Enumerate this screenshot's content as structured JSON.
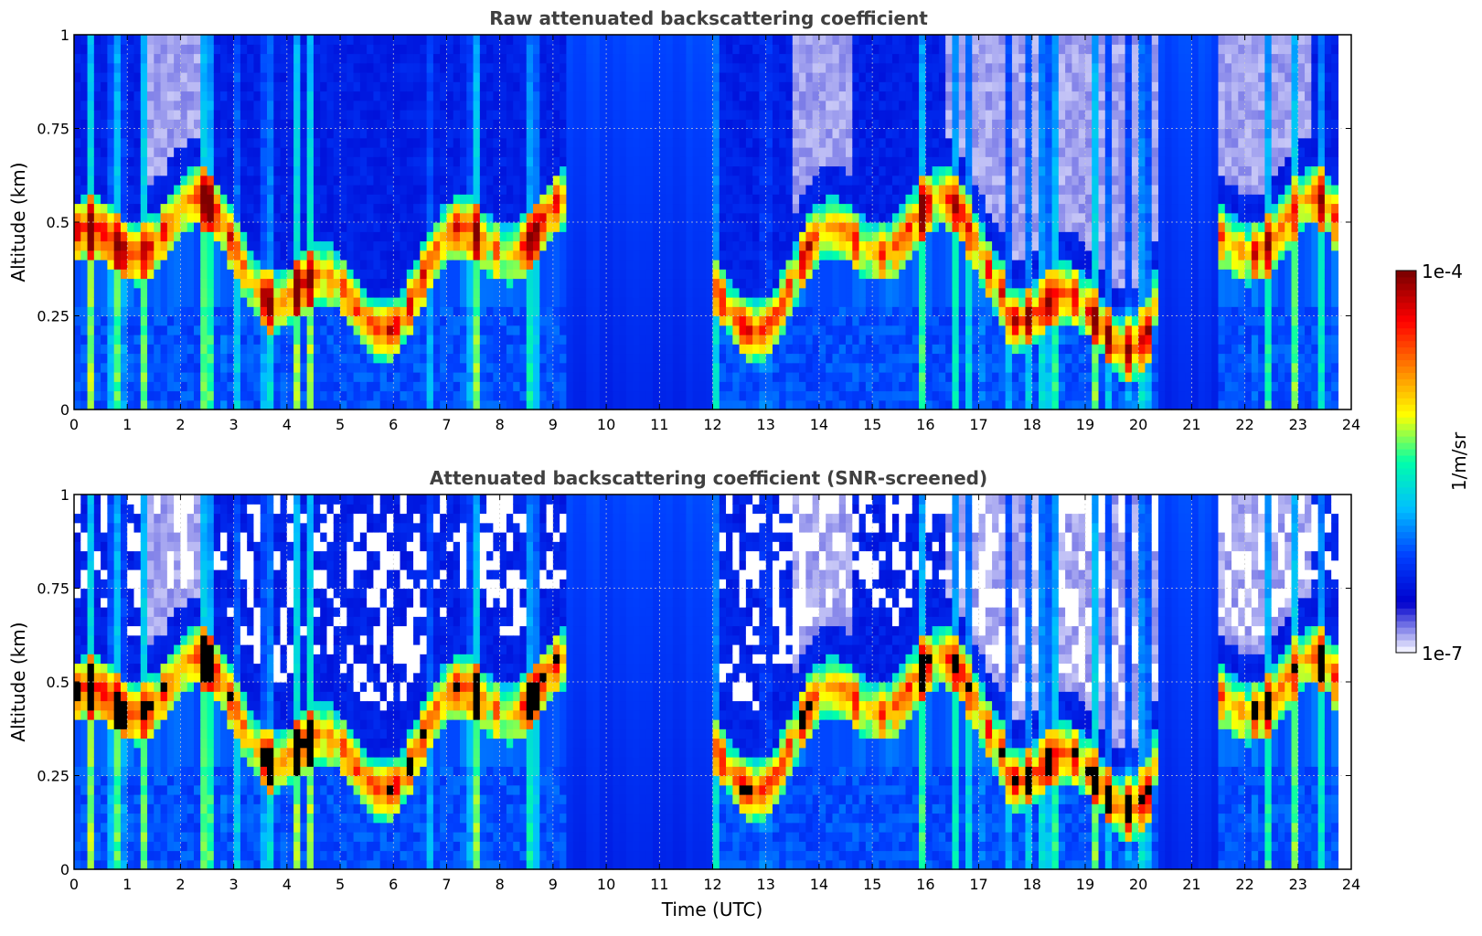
{
  "chart_data": [
    {
      "type": "heatmap",
      "title": "Raw attenuated backscattering coefficient",
      "xlabel": "",
      "ylabel": "Altitude (km)",
      "xlim": [
        0,
        24
      ],
      "ylim": [
        0,
        1
      ],
      "x_ticks": [
        "0",
        "1",
        "2",
        "3",
        "4",
        "5",
        "6",
        "7",
        "8",
        "9",
        "10",
        "11",
        "12",
        "13",
        "14",
        "15",
        "16",
        "17",
        "18",
        "19",
        "20",
        "21",
        "22",
        "23",
        "24"
      ],
      "y_ticks": [
        "0",
        "0.25",
        "0.5",
        "0.75",
        "1"
      ],
      "y_tick_values": [
        0,
        0.25,
        0.5,
        0.75,
        1
      ],
      "grid": true,
      "data_end_time": 23.75,
      "screened": false,
      "blue_windows": [
        [
          9.3,
          12.0
        ],
        [
          20.4,
          21.5
        ]
      ]
    },
    {
      "type": "heatmap",
      "title": "Attenuated backscattering coefficient (SNR-screened)",
      "xlabel": "Time (UTC)",
      "ylabel": "Altitude (km)",
      "xlim": [
        0,
        24
      ],
      "ylim": [
        0,
        1
      ],
      "x_ticks": [
        "0",
        "1",
        "2",
        "3",
        "4",
        "5",
        "6",
        "7",
        "8",
        "9",
        "10",
        "11",
        "12",
        "13",
        "14",
        "15",
        "16",
        "17",
        "18",
        "19",
        "20",
        "21",
        "22",
        "23",
        "24"
      ],
      "y_ticks": [
        "0",
        "0.25",
        "0.5",
        "0.75",
        "1"
      ],
      "y_tick_values": [
        0,
        0.25,
        0.5,
        0.75,
        1
      ],
      "grid": true,
      "data_end_time": 23.75,
      "screened": true,
      "blue_windows": [
        [
          9.3,
          12.0
        ],
        [
          20.4,
          21.5
        ]
      ]
    }
  ],
  "colorbar": {
    "max_label": "1e-4",
    "min_label": "1e-7",
    "unit_label": "1/m/sr",
    "colormap": "jet",
    "colors": [
      "#eeeeff",
      "#0000cd",
      "#0040ff",
      "#00bfff",
      "#00ffaa",
      "#ffff00",
      "#ff8000",
      "#ff0000",
      "#800000"
    ]
  }
}
